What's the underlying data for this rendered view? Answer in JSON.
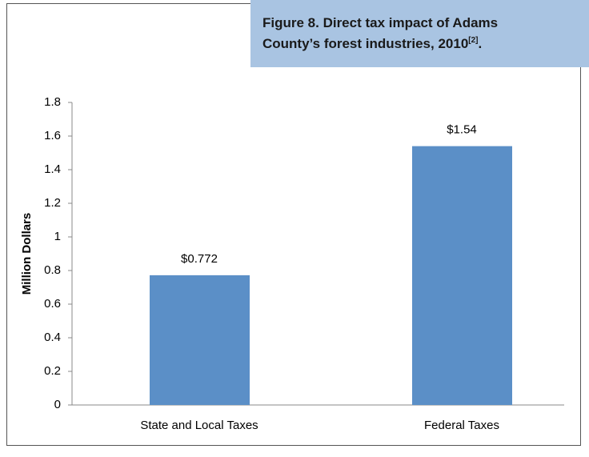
{
  "chart_data": {
    "type": "bar",
    "title": [
      "Figure 8. Direct tax impact of Adams",
      "County’s forest industries, 2010"
    ],
    "title_ref": "[2]",
    "title_end": ".",
    "ylabel": "Million Dollars",
    "categories": [
      "State and Local Taxes",
      "Federal Taxes"
    ],
    "values": [
      0.772,
      1.54
    ],
    "value_labels": [
      "$0.772",
      "$1.54"
    ],
    "color": "#5b8fc7",
    "ylim": [
      0,
      1.8
    ],
    "yticks": [
      0,
      0.2,
      0.4,
      0.6,
      0.8,
      1,
      1.2,
      1.4,
      1.6,
      1.8
    ],
    "grid": false
  }
}
